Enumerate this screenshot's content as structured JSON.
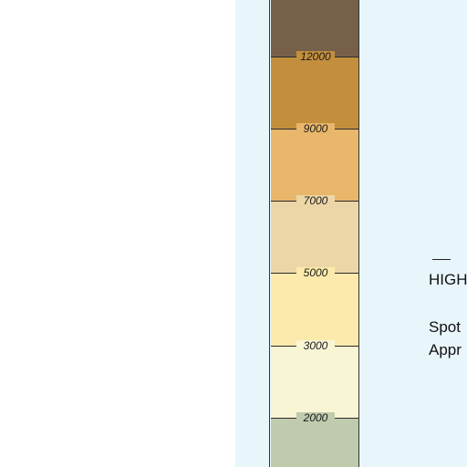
{
  "colors": {
    "background": "#ffffff",
    "panel": "#e8f6fb",
    "bands": [
      "#77604a",
      "#c48f3d",
      "#e8b76c",
      "#ecd6a7",
      "#fbeaab",
      "#f8f5d4",
      "#bfcbac"
    ]
  },
  "elevation_scale": {
    "ticks": [
      "12000",
      "9000",
      "7000",
      "5000",
      "3000",
      "2000"
    ]
  },
  "legend": {
    "high": "HIGH",
    "spot": "Spot",
    "appr": "Appr"
  }
}
